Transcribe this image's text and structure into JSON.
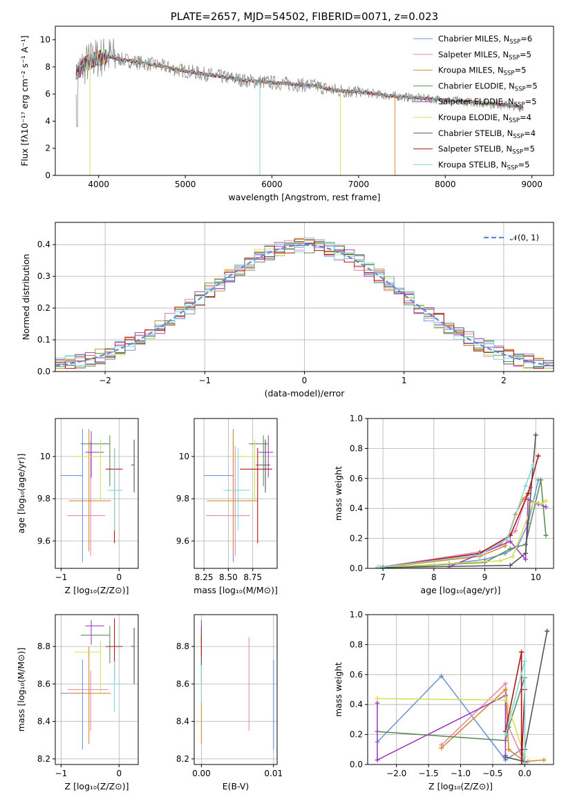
{
  "colors": [
    "#6f94db",
    "#e789b6",
    "#d88b2e",
    "#608c5c",
    "#a040c0",
    "#d4e055",
    "#555555",
    "#b01515",
    "#7dd9dc"
  ],
  "chart_data": [
    {
      "id": "spectrum",
      "type": "line",
      "title": "PLATE=2657, MJD=54502, FIBERID=0071, z=0.023",
      "xlabel": "wavelength [Angstrom, rest frame]",
      "ylabel": "Flux [fλ10⁻¹⁷ erg cm⁻² s⁻¹ A⁻¹]",
      "xlim": [
        3500,
        9250
      ],
      "ylim": [
        0,
        11
      ],
      "xticks": [
        4000,
        5000,
        6000,
        7000,
        8000,
        9000
      ],
      "yticks": [
        0,
        2,
        4,
        6,
        8,
        10
      ],
      "continuum": {
        "x": [
          3750,
          3850,
          3950,
          4100,
          4300,
          4500,
          4700,
          4900,
          5100,
          5300,
          5500,
          5700,
          5900,
          6100,
          6300,
          6500,
          6700,
          6900,
          7100,
          7300,
          7500,
          7700,
          7900,
          8100,
          8300,
          8500,
          8700,
          8900
        ],
        "y": [
          7.6,
          8.2,
          8.6,
          8.8,
          8.5,
          8.3,
          8.1,
          7.8,
          7.6,
          7.4,
          7.2,
          7.0,
          6.9,
          6.8,
          6.7,
          6.6,
          6.3,
          6.2,
          6.1,
          5.9,
          5.8,
          5.7,
          5.6,
          5.5,
          5.4,
          5.3,
          5.2,
          5.0
        ]
      },
      "legend": [
        {
          "label": "Chabrier MILES, N",
          "sub": "SSP",
          "tail": "=6"
        },
        {
          "label": "Salpeter MILES, N",
          "sub": "SSP",
          "tail": "=5"
        },
        {
          "label": "Kroupa MILES, N",
          "sub": "SSP",
          "tail": "=5"
        },
        {
          "label": "Chabrier ELODIE, N",
          "sub": "SSP",
          "tail": "=5"
        },
        {
          "label": "Salpeter ELODIE, N",
          "sub": "SSP",
          "tail": "=5"
        },
        {
          "label": "Kroupa ELODIE, N",
          "sub": "SSP",
          "tail": "=4"
        },
        {
          "label": "Chabrier STELIB, N",
          "sub": "SSP",
          "tail": "=4"
        },
        {
          "label": "Salpeter STELIB, N",
          "sub": "SSP",
          "tail": "=5"
        },
        {
          "label": "Kroupa STELIB, N",
          "sub": "SSP",
          "tail": "=5"
        }
      ],
      "legend_loc": "upper right"
    },
    {
      "id": "residuals",
      "type": "line",
      "xlabel": "(data-model)/error",
      "ylabel": "Normed distribution",
      "xlim": [
        -2.5,
        2.5
      ],
      "ylim": [
        0,
        0.47
      ],
      "xticks": [
        -2,
        -1,
        0,
        1,
        2
      ],
      "yticks": [
        0.0,
        0.1,
        0.2,
        0.3,
        0.4
      ],
      "bin_width": 0.1,
      "legend": "𝒩(0, 1)",
      "legend_loc": "upper right",
      "grid": true
    },
    {
      "id": "age-vs-Z",
      "type": "scatter",
      "xlabel": "Z [log₁₀(Z/Z⊙)]",
      "ylabel": "age  [log₁₀(age/yr)]",
      "xlim": [
        -1.1,
        0.33
      ],
      "ylim": [
        9.47,
        10.18
      ],
      "xticks": [
        -1,
        0
      ],
      "yticks": [
        9.6,
        9.8,
        10.0
      ],
      "points": [
        {
          "x": -0.63,
          "y": 9.91,
          "xerr": [
            0.38,
            0.0
          ],
          "yerr": [
            0.41,
            0.22
          ]
        },
        {
          "x": -0.49,
          "y": 9.72,
          "xerr": [
            0.4,
            0.25
          ],
          "yerr": [
            0.19,
            0.35
          ]
        },
        {
          "x": -0.52,
          "y": 9.79,
          "xerr": [
            0.35,
            0.38
          ],
          "yerr": [
            0.24,
            0.34
          ]
        },
        {
          "x": -0.16,
          "y": 10.06,
          "xerr": [
            0.5,
            0.0
          ],
          "yerr": [
            0.2,
            0.04
          ]
        },
        {
          "x": -0.48,
          "y": 10.02,
          "xerr": [
            0.1,
            0.22
          ],
          "yerr": [
            0.12,
            0.1
          ]
        },
        {
          "x": -0.32,
          "y": 10.0,
          "xerr": [
            0.45,
            0.0
          ],
          "yerr": [
            0.21,
            0.08
          ]
        },
        {
          "x": 0.26,
          "y": 9.96,
          "xerr": [
            0.05,
            0.0
          ],
          "yerr": [
            0.13,
            0.12
          ]
        },
        {
          "x": -0.08,
          "y": 9.94,
          "xerr": [
            0.15,
            0.14
          ],
          "yerr": [
            0.35,
            0.1
          ]
        },
        {
          "x": -0.08,
          "y": 9.84,
          "xerr": [
            0.12,
            0.14
          ],
          "yerr": [
            0.19,
            0.2
          ]
        }
      ],
      "grid": true
    },
    {
      "id": "age-vs-mass",
      "type": "scatter",
      "xlabel": "mass [log₁₀(M/M⊙)]",
      "ylabel": "",
      "xlim": [
        8.15,
        9.0
      ],
      "ylim": [
        9.47,
        10.18
      ],
      "xticks": [
        8.25,
        8.5,
        8.75
      ],
      "xticklabels": [
        "8.25",
        "8.50",
        "8.75"
      ],
      "yticks": [
        9.6,
        9.8,
        10.0
      ],
      "points": [
        {
          "x": 8.55,
          "y": 9.91,
          "xerr": [
            0.3,
            0.0
          ],
          "yerr": [
            0.41,
            0.22
          ]
        },
        {
          "x": 8.57,
          "y": 9.72,
          "xerr": [
            0.3,
            0.15
          ],
          "yerr": [
            0.19,
            0.33
          ]
        },
        {
          "x": 8.55,
          "y": 9.79,
          "xerr": [
            0.27,
            0.25
          ],
          "yerr": [
            0.24,
            0.34
          ]
        },
        {
          "x": 8.86,
          "y": 10.06,
          "xerr": [
            0.15,
            0.05
          ],
          "yerr": [
            0.2,
            0.04
          ]
        },
        {
          "x": 8.91,
          "y": 10.02,
          "xerr": [
            0.1,
            0.05
          ],
          "yerr": [
            0.12,
            0.08
          ]
        },
        {
          "x": 8.77,
          "y": 10.0,
          "xerr": [
            0.22,
            0.06
          ],
          "yerr": [
            0.21,
            0.08
          ]
        },
        {
          "x": 8.88,
          "y": 9.96,
          "xerr": [
            0.1,
            0.05
          ],
          "yerr": [
            0.13,
            0.12
          ]
        },
        {
          "x": 8.8,
          "y": 9.94,
          "xerr": [
            0.18,
            0.15
          ],
          "yerr": [
            0.35,
            0.1
          ]
        },
        {
          "x": 8.6,
          "y": 9.84,
          "xerr": [
            0.15,
            0.12
          ],
          "yerr": [
            0.19,
            0.2
          ]
        }
      ],
      "grid": true
    },
    {
      "id": "mass-weight-vs-age",
      "type": "line",
      "xlabel": "age  [log₁₀(age/yr)]",
      "ylabel": "mass weight",
      "xlim": [
        6.7,
        10.35
      ],
      "ylim": [
        0,
        1.0
      ],
      "xticks": [
        7,
        8,
        9,
        10
      ],
      "yticks": [
        0.0,
        0.2,
        0.4,
        0.6,
        0.8,
        1.0
      ],
      "series": [
        {
          "x": [
            6.9,
            8.3,
            9.0,
            9.4,
            9.65,
            9.85,
            10.05
          ],
          "y": [
            0.005,
            0.03,
            0.06,
            0.1,
            0.15,
            0.3,
            0.59
          ]
        },
        {
          "x": [
            6.9,
            8.9,
            9.3,
            9.6,
            9.8,
            9.9
          ],
          "y": [
            0.005,
            0.11,
            0.16,
            0.25,
            0.46,
            0.54
          ]
        },
        {
          "x": [
            6.95,
            8.9,
            9.4,
            9.6,
            9.75,
            9.85
          ],
          "y": [
            0.005,
            0.08,
            0.15,
            0.36,
            0.46,
            0.5
          ]
        },
        {
          "x": [
            7.0,
            9.0,
            9.5,
            9.8,
            10.1,
            10.2
          ],
          "y": [
            0.003,
            0.04,
            0.13,
            0.16,
            0.59,
            0.22
          ]
        },
        {
          "x": [
            8.3,
            9.5,
            9.8,
            9.85,
            10.05,
            10.2
          ],
          "y": [
            0.01,
            0.18,
            0.06,
            0.46,
            0.43,
            0.41
          ]
        },
        {
          "x": [
            6.9,
            9.3,
            9.55,
            9.95,
            10.1,
            10.2
          ],
          "y": [
            0.005,
            0.05,
            0.08,
            0.44,
            0.43,
            0.45
          ]
        },
        {
          "x": [
            7.0,
            9.5,
            9.8,
            10.0
          ],
          "y": [
            0.005,
            0.02,
            0.1,
            0.89
          ]
        },
        {
          "x": [
            6.9,
            8.9,
            9.5,
            9.85,
            10.05
          ],
          "y": [
            0.005,
            0.1,
            0.22,
            0.5,
            0.75
          ]
        },
        {
          "x": [
            6.9,
            8.9,
            9.45,
            9.8,
            9.95
          ],
          "y": [
            0.005,
            0.09,
            0.2,
            0.55,
            0.69
          ]
        }
      ],
      "grid": true
    },
    {
      "id": "mass-vs-Z",
      "type": "scatter",
      "xlabel": "Z [log₁₀(Z/Z⊙)]",
      "ylabel": "mass [log₁₀(M/M⊙)]",
      "xlim": [
        -1.1,
        0.33
      ],
      "ylim": [
        8.17,
        8.97
      ],
      "xticks": [
        -1,
        0
      ],
      "yticks": [
        8.2,
        8.4,
        8.6,
        8.8
      ],
      "points": [
        {
          "x": -0.63,
          "y": 8.55,
          "xerr": [
            0.38,
            0.0
          ],
          "yerr": [
            0.3,
            0.18
          ]
        },
        {
          "x": -0.49,
          "y": 8.57,
          "xerr": [
            0.4,
            0.3
          ],
          "yerr": [
            0.22,
            0.1
          ]
        },
        {
          "x": -0.52,
          "y": 8.55,
          "xerr": [
            0.35,
            0.38
          ],
          "yerr": [
            0.27,
            0.25
          ]
        },
        {
          "x": -0.16,
          "y": 8.86,
          "xerr": [
            0.5,
            0.0
          ],
          "yerr": [
            0.15,
            0.05
          ]
        },
        {
          "x": -0.48,
          "y": 8.91,
          "xerr": [
            0.1,
            0.22
          ],
          "yerr": [
            0.1,
            0.03
          ]
        },
        {
          "x": -0.32,
          "y": 8.77,
          "xerr": [
            0.45,
            0.0
          ],
          "yerr": [
            0.22,
            0.06
          ]
        },
        {
          "x": 0.26,
          "y": 8.8,
          "xerr": [
            0.05,
            0.0
          ],
          "yerr": [
            0.2,
            0.1
          ]
        },
        {
          "x": -0.08,
          "y": 8.8,
          "xerr": [
            0.15,
            0.14
          ],
          "yerr": [
            0.18,
            0.15
          ]
        },
        {
          "x": -0.08,
          "y": 8.6,
          "xerr": [
            0.12,
            0.14
          ],
          "yerr": [
            0.15,
            0.12
          ]
        }
      ],
      "grid": true
    },
    {
      "id": "mass-vs-ebv",
      "type": "scatter",
      "xlabel": "E(B-V)",
      "ylabel": "",
      "xlim": [
        -0.001,
        0.0105
      ],
      "ylim": [
        8.17,
        8.97
      ],
      "xticks": [
        0.0,
        0.01
      ],
      "xticklabels": [
        "0.00",
        "0.01"
      ],
      "yticks": [
        8.2,
        8.4,
        8.6,
        8.8
      ],
      "points": [
        {
          "x": 0.01,
          "y": 8.55,
          "xerr": [
            0,
            0
          ],
          "yerr": [
            0.3,
            0.18
          ]
        },
        {
          "x": 0.0066,
          "y": 8.57,
          "xerr": [
            0,
            0
          ],
          "yerr": [
            0.22,
            0.28
          ]
        },
        {
          "x": 0.0,
          "y": 8.55,
          "xerr": [
            0,
            0
          ],
          "yerr": [
            0.27,
            0.25
          ]
        },
        {
          "x": 0.0,
          "y": 8.86,
          "xerr": [
            0,
            0
          ],
          "yerr": [
            0.15,
            0.05
          ]
        },
        {
          "x": 0.0,
          "y": 8.91,
          "xerr": [
            0,
            0
          ],
          "yerr": [
            0.1,
            0.03
          ]
        },
        {
          "x": 0.0,
          "y": 8.77,
          "xerr": [
            0,
            0
          ],
          "yerr": [
            0.22,
            0.06
          ]
        },
        {
          "x": 0.0,
          "y": 8.8,
          "xerr": [
            0,
            0
          ],
          "yerr": [
            0.2,
            0.1
          ]
        },
        {
          "x": 0.0,
          "y": 8.8,
          "xerr": [
            0,
            0
          ],
          "yerr": [
            0.05,
            0.05
          ]
        },
        {
          "x": 0.0,
          "y": 8.6,
          "xerr": [
            0,
            0
          ],
          "yerr": [
            0.1,
            0.1
          ]
        }
      ],
      "grid": true
    },
    {
      "id": "mass-weight-vs-Z",
      "type": "line",
      "xlabel": "Z [log₁₀(Z/Z⊙)]",
      "ylabel": "mass weight",
      "xlim": [
        -2.45,
        0.45
      ],
      "ylim": [
        0,
        1.0
      ],
      "xticks": [
        -2.0,
        -1.5,
        -1.0,
        -0.5,
        0.0
      ],
      "xticklabels": [
        "−2.0",
        "−1.5",
        "−1.0",
        "−0.5",
        "0.0"
      ],
      "yticks": [
        0.0,
        0.2,
        0.4,
        0.6,
        0.8,
        1.0
      ],
      "series": [
        {
          "x": [
            -2.3,
            -1.3,
            -0.3,
            -0.05,
            0.0
          ],
          "y": [
            0.15,
            0.59,
            0.03,
            0.1,
            0.02
          ]
        },
        {
          "x": [
            -1.3,
            -0.3,
            -0.25,
            0.0,
            0.05
          ],
          "y": [
            0.13,
            0.54,
            0.25,
            0.01,
            0.02
          ]
        },
        {
          "x": [
            -1.3,
            -0.3,
            -0.25,
            0.0,
            0.3
          ],
          "y": [
            0.11,
            0.5,
            0.1,
            0.02,
            0.03
          ]
        },
        {
          "x": [
            -2.3,
            -0.3,
            -0.25,
            0.0,
            0.0
          ],
          "y": [
            0.22,
            0.16,
            0.25,
            0.58,
            0.0
          ]
        },
        {
          "x": [
            -2.3,
            -2.3,
            -0.3,
            -0.3,
            -0.3
          ],
          "y": [
            0.41,
            0.03,
            0.46,
            0.43,
            0.06
          ]
        },
        {
          "x": [
            -2.3,
            -0.3,
            -0.3,
            0.0
          ],
          "y": [
            0.44,
            0.43,
            0.45,
            0.05
          ]
        },
        {
          "x": [
            -0.3,
            0.0,
            0.0,
            0.35
          ],
          "y": [
            0.05,
            0.02,
            0.1,
            0.89
          ]
        },
        {
          "x": [
            -0.3,
            -0.05,
            -0.05,
            0.0
          ],
          "y": [
            0.22,
            0.75,
            0.0,
            0.5
          ]
        },
        {
          "x": [
            -0.3,
            0.0,
            0.0
          ],
          "y": [
            0.2,
            0.69,
            0.01
          ]
        }
      ],
      "grid": true
    }
  ]
}
